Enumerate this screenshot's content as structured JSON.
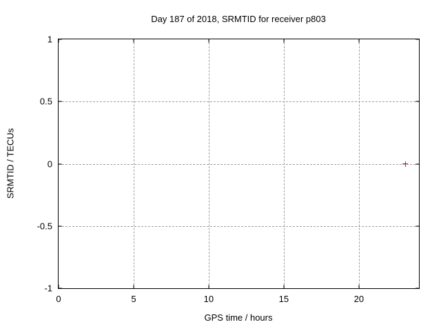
{
  "chart_data": {
    "type": "scatter",
    "title": "Day 187 of 2018, SRMTID for receiver p803",
    "xlabel": "GPS time / hours",
    "ylabel": "SRMTID / TECUs",
    "xlim": [
      0,
      24
    ],
    "ylim": [
      -1,
      1
    ],
    "xticks": [
      0,
      5,
      10,
      15,
      20
    ],
    "yticks": [
      1,
      0.5,
      0,
      -0.5,
      -1
    ],
    "grid": true,
    "legend": "none",
    "series": [
      {
        "marker": "plus",
        "color": "#ff0000",
        "points": [
          {
            "x": 23.1,
            "y": 0
          }
        ]
      }
    ]
  },
  "colors": {
    "background": "#ffffff",
    "plot_border": "#000000",
    "grid": "#9e9e9e",
    "text": "#000000",
    "marker": "#ff0000"
  }
}
